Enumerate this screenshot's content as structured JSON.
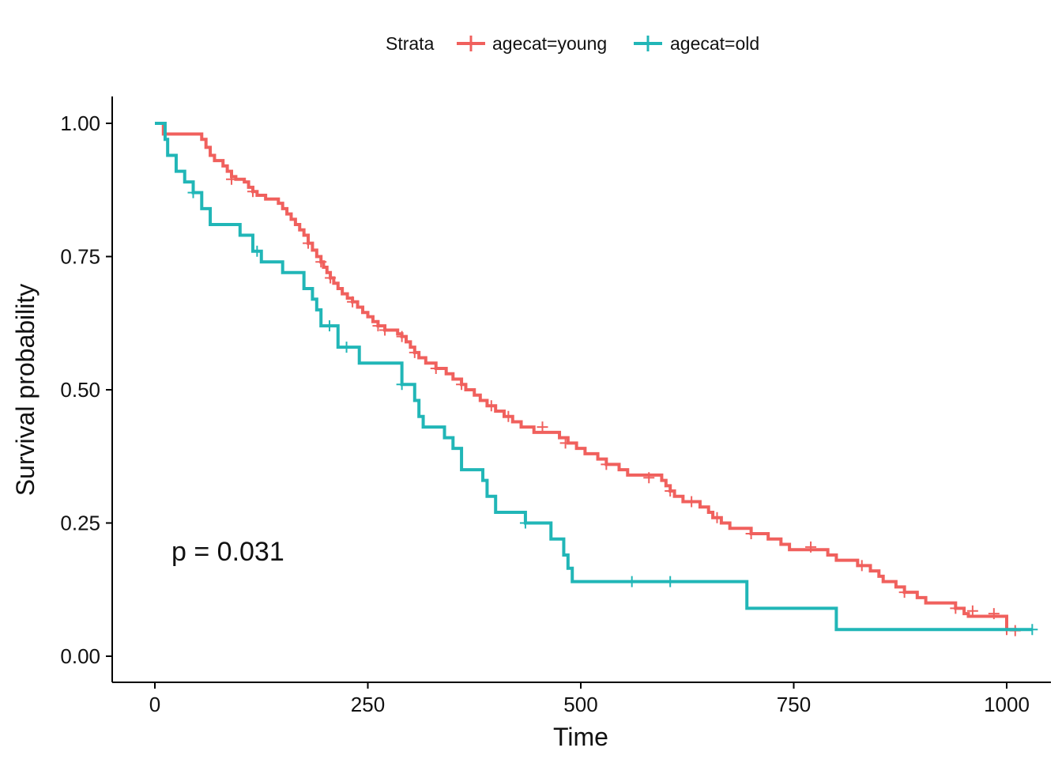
{
  "chart_data": {
    "type": "line",
    "step": true,
    "xlabel": "Time",
    "ylabel": "Survival probability",
    "xlim": [
      -50,
      1050
    ],
    "ylim": [
      -0.05,
      1.05
    ],
    "x_ticks": [
      0,
      250,
      500,
      750,
      1000
    ],
    "x_tick_labels": [
      "0",
      "250",
      "500",
      "750",
      "1000"
    ],
    "y_ticks": [
      0.0,
      0.25,
      0.5,
      0.75,
      1.0
    ],
    "y_tick_labels": [
      "0.00",
      "0.25",
      "0.50",
      "0.75",
      "1.00"
    ],
    "grid": false,
    "legend": {
      "title": "Strata",
      "position": "top",
      "entries": [
        "agecat=young",
        "agecat=old"
      ]
    },
    "annotation": "p = 0.031",
    "series": [
      {
        "name": "agecat=young",
        "color": "#F0605D",
        "points": [
          [
            0,
            1.0
          ],
          [
            10,
            0.98
          ],
          [
            55,
            0.97
          ],
          [
            60,
            0.955
          ],
          [
            65,
            0.94
          ],
          [
            70,
            0.93
          ],
          [
            80,
            0.92
          ],
          [
            85,
            0.91
          ],
          [
            90,
            0.9
          ],
          [
            95,
            0.895
          ],
          [
            105,
            0.89
          ],
          [
            110,
            0.88
          ],
          [
            115,
            0.872
          ],
          [
            120,
            0.865
          ],
          [
            130,
            0.858
          ],
          [
            145,
            0.85
          ],
          [
            150,
            0.84
          ],
          [
            155,
            0.83
          ],
          [
            160,
            0.82
          ],
          [
            165,
            0.81
          ],
          [
            170,
            0.8
          ],
          [
            175,
            0.79
          ],
          [
            180,
            0.775
          ],
          [
            185,
            0.762
          ],
          [
            190,
            0.75
          ],
          [
            195,
            0.74
          ],
          [
            198,
            0.73
          ],
          [
            202,
            0.72
          ],
          [
            206,
            0.71
          ],
          [
            210,
            0.7
          ],
          [
            215,
            0.69
          ],
          [
            220,
            0.68
          ],
          [
            226,
            0.672
          ],
          [
            232,
            0.665
          ],
          [
            238,
            0.655
          ],
          [
            244,
            0.645
          ],
          [
            250,
            0.637
          ],
          [
            256,
            0.628
          ],
          [
            262,
            0.62
          ],
          [
            270,
            0.612
          ],
          [
            285,
            0.605
          ],
          [
            290,
            0.6
          ],
          [
            295,
            0.59
          ],
          [
            300,
            0.58
          ],
          [
            305,
            0.57
          ],
          [
            310,
            0.56
          ],
          [
            318,
            0.55
          ],
          [
            330,
            0.54
          ],
          [
            342,
            0.53
          ],
          [
            350,
            0.52
          ],
          [
            360,
            0.51
          ],
          [
            365,
            0.5
          ],
          [
            375,
            0.49
          ],
          [
            382,
            0.48
          ],
          [
            390,
            0.47
          ],
          [
            400,
            0.46
          ],
          [
            410,
            0.45
          ],
          [
            420,
            0.44
          ],
          [
            430,
            0.43
          ],
          [
            445,
            0.42
          ],
          [
            475,
            0.41
          ],
          [
            485,
            0.4
          ],
          [
            495,
            0.39
          ],
          [
            505,
            0.38
          ],
          [
            520,
            0.37
          ],
          [
            530,
            0.36
          ],
          [
            545,
            0.35
          ],
          [
            555,
            0.34
          ],
          [
            595,
            0.33
          ],
          [
            600,
            0.32
          ],
          [
            605,
            0.31
          ],
          [
            610,
            0.3
          ],
          [
            620,
            0.29
          ],
          [
            640,
            0.28
          ],
          [
            650,
            0.27
          ],
          [
            655,
            0.26
          ],
          [
            665,
            0.25
          ],
          [
            675,
            0.24
          ],
          [
            700,
            0.23
          ],
          [
            720,
            0.22
          ],
          [
            735,
            0.21
          ],
          [
            745,
            0.2
          ],
          [
            790,
            0.19
          ],
          [
            800,
            0.18
          ],
          [
            825,
            0.17
          ],
          [
            840,
            0.16
          ],
          [
            850,
            0.15
          ],
          [
            855,
            0.14
          ],
          [
            870,
            0.13
          ],
          [
            880,
            0.12
          ],
          [
            895,
            0.11
          ],
          [
            905,
            0.1
          ],
          [
            940,
            0.09
          ],
          [
            950,
            0.08
          ],
          [
            955,
            0.075
          ],
          [
            1000,
            0.05
          ],
          [
            1010,
            0.048
          ]
        ],
        "censored": [
          [
            90,
            0.895
          ],
          [
            115,
            0.872
          ],
          [
            180,
            0.775
          ],
          [
            195,
            0.74
          ],
          [
            206,
            0.71
          ],
          [
            232,
            0.665
          ],
          [
            262,
            0.62
          ],
          [
            270,
            0.612
          ],
          [
            290,
            0.6
          ],
          [
            305,
            0.57
          ],
          [
            330,
            0.54
          ],
          [
            360,
            0.51
          ],
          [
            395,
            0.47
          ],
          [
            415,
            0.45
          ],
          [
            455,
            0.43
          ],
          [
            482,
            0.4
          ],
          [
            530,
            0.36
          ],
          [
            580,
            0.335
          ],
          [
            605,
            0.31
          ],
          [
            630,
            0.29
          ],
          [
            660,
            0.26
          ],
          [
            700,
            0.23
          ],
          [
            770,
            0.205
          ],
          [
            830,
            0.17
          ],
          [
            880,
            0.12
          ],
          [
            940,
            0.09
          ],
          [
            960,
            0.085
          ],
          [
            985,
            0.08
          ],
          [
            1000,
            0.05
          ],
          [
            1010,
            0.048
          ]
        ]
      },
      {
        "name": "agecat=old",
        "color": "#21B6B7",
        "points": [
          [
            0,
            1.0
          ],
          [
            12,
            0.97
          ],
          [
            15,
            0.94
          ],
          [
            25,
            0.91
          ],
          [
            35,
            0.89
          ],
          [
            45,
            0.87
          ],
          [
            55,
            0.84
          ],
          [
            65,
            0.81
          ],
          [
            100,
            0.79
          ],
          [
            115,
            0.76
          ],
          [
            125,
            0.74
          ],
          [
            150,
            0.72
          ],
          [
            175,
            0.69
          ],
          [
            185,
            0.67
          ],
          [
            190,
            0.65
          ],
          [
            195,
            0.62
          ],
          [
            215,
            0.58
          ],
          [
            240,
            0.55
          ],
          [
            290,
            0.51
          ],
          [
            305,
            0.48
          ],
          [
            310,
            0.45
          ],
          [
            315,
            0.43
          ],
          [
            340,
            0.41
          ],
          [
            350,
            0.39
          ],
          [
            360,
            0.35
          ],
          [
            385,
            0.33
          ],
          [
            390,
            0.3
          ],
          [
            400,
            0.27
          ],
          [
            435,
            0.25
          ],
          [
            465,
            0.22
          ],
          [
            480,
            0.19
          ],
          [
            485,
            0.165
          ],
          [
            490,
            0.14
          ],
          [
            695,
            0.09
          ],
          [
            800,
            0.05
          ],
          [
            1030,
            0.05
          ]
        ],
        "censored": [
          [
            45,
            0.87
          ],
          [
            120,
            0.76
          ],
          [
            205,
            0.62
          ],
          [
            225,
            0.58
          ],
          [
            290,
            0.51
          ],
          [
            435,
            0.25
          ],
          [
            560,
            0.14
          ],
          [
            605,
            0.14
          ],
          [
            1030,
            0.05
          ]
        ]
      }
    ]
  }
}
